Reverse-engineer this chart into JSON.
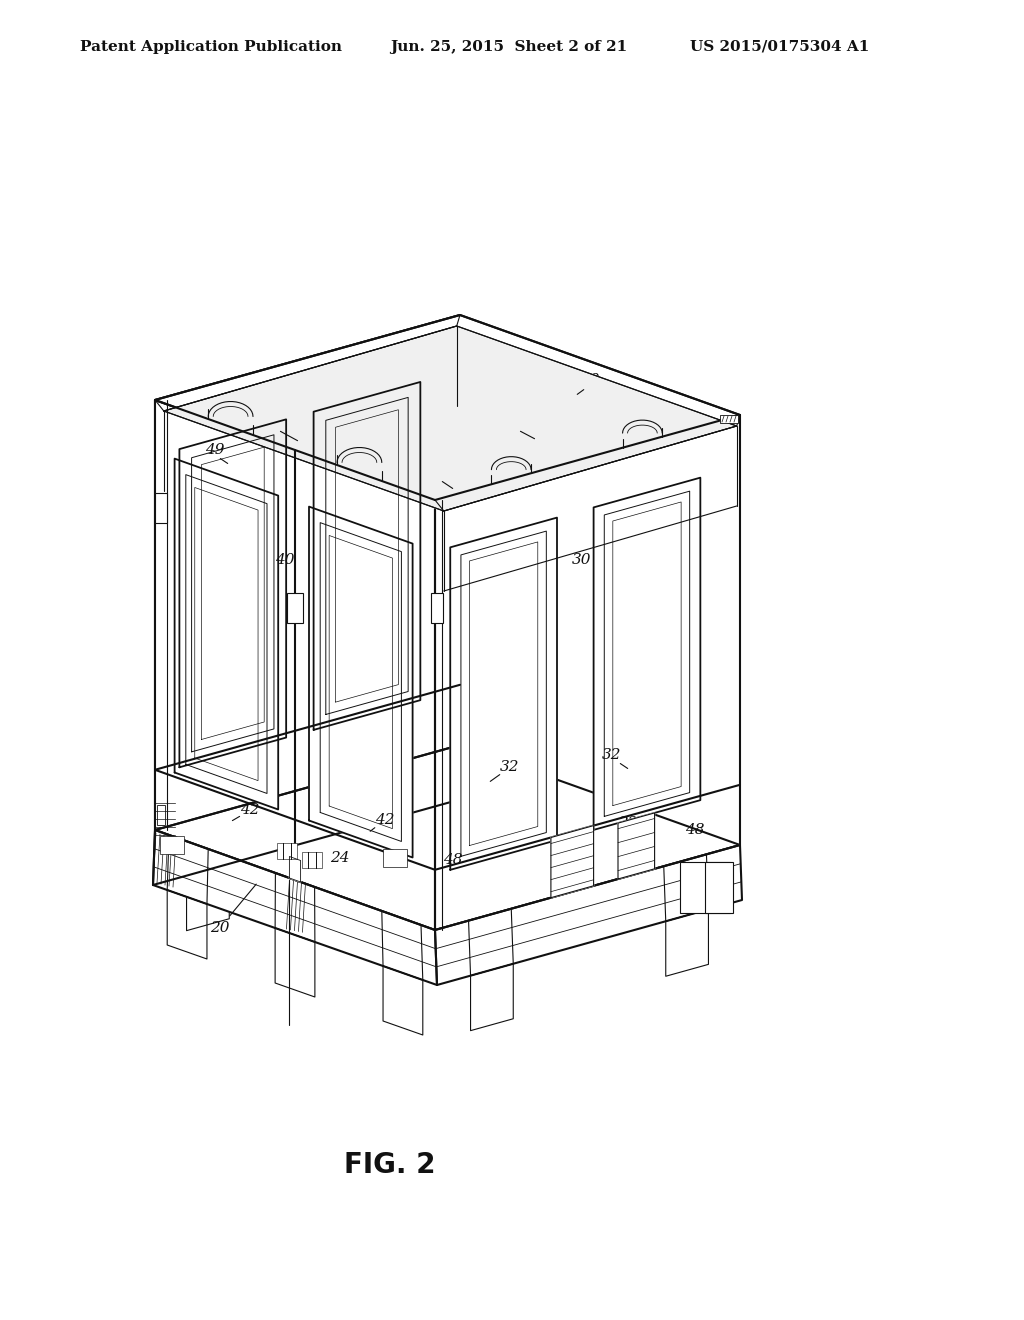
{
  "bg_color": "#ffffff",
  "line_color": "#111111",
  "header_left": "Patent Application Publication",
  "header_center": "Jun. 25, 2015  Sheet 2 of 21",
  "header_right": "US 2015/0175304 A1",
  "caption": "FIG. 2",
  "lw_main": 1.5,
  "lw_thin": 0.8,
  "lw_detail": 0.6,
  "fig_label_fs": 20,
  "ref_fs": 11,
  "header_fs": 11
}
